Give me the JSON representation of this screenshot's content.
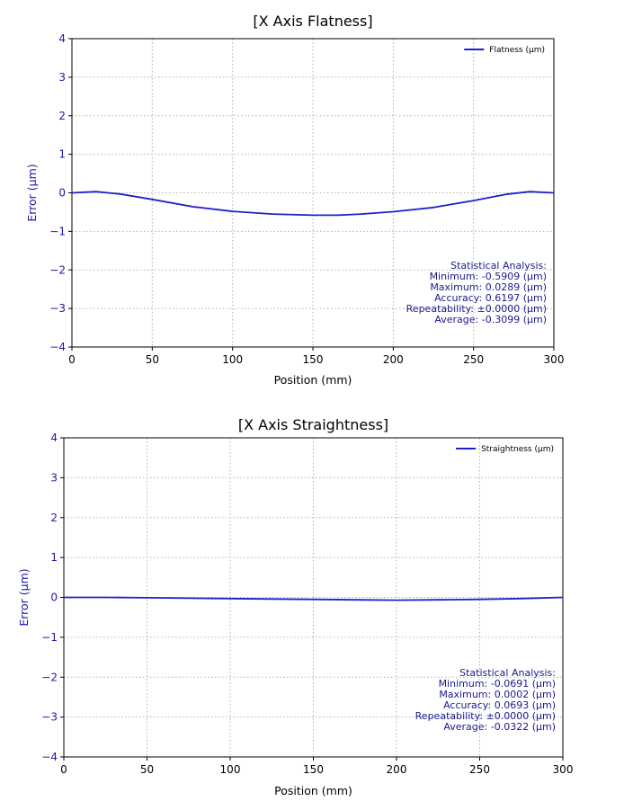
{
  "chart_data": [
    {
      "type": "line",
      "title": "[X Axis Flatness]",
      "xlabel": "Position (mm)",
      "ylabel": "Error (μm)",
      "xlim": [
        0,
        300
      ],
      "ylim": [
        -4,
        4
      ],
      "xticks": [
        0,
        50,
        100,
        150,
        200,
        250,
        300
      ],
      "yticks": [
        -4,
        -3,
        -2,
        -1,
        0,
        1,
        2,
        3,
        4
      ],
      "xtick_labels": [
        "0",
        "50",
        "100",
        "150",
        "200",
        "250",
        "300"
      ],
      "ytick_labels": [
        "−4",
        "−3",
        "−2",
        "−1",
        "0",
        "1",
        "2",
        "3",
        "4"
      ],
      "grid": true,
      "legend_position": "top-right",
      "series": [
        {
          "name": "Flatness (μm)",
          "color": "#1f1fcc",
          "x": [
            0,
            15,
            30,
            50,
            75,
            100,
            125,
            150,
            165,
            180,
            200,
            225,
            250,
            270,
            285,
            300
          ],
          "y": [
            0.0,
            0.03,
            -0.03,
            -0.17,
            -0.36,
            -0.48,
            -0.55,
            -0.58,
            -0.58,
            -0.55,
            -0.49,
            -0.38,
            -0.2,
            -0.04,
            0.03,
            0.0
          ]
        }
      ],
      "stats": {
        "heading": "Statistical Analysis:",
        "lines": [
          "Minimum: -0.5909 (μm)",
          "Maximum: 0.0289 (μm)",
          "Accuracy: 0.6197 (μm)",
          "Repeatability: ±0.0000 (μm)",
          "Average: -0.3099 (μm)"
        ]
      }
    },
    {
      "type": "line",
      "title": "[X Axis Straightness]",
      "xlabel": "Position (mm)",
      "ylabel": "Error (μm)",
      "xlim": [
        0,
        300
      ],
      "ylim": [
        -4,
        4
      ],
      "xticks": [
        0,
        50,
        100,
        150,
        200,
        250,
        300
      ],
      "yticks": [
        -4,
        -3,
        -2,
        -1,
        0,
        1,
        2,
        3,
        4
      ],
      "xtick_labels": [
        "0",
        "50",
        "100",
        "150",
        "200",
        "250",
        "300"
      ],
      "ytick_labels": [
        "−4",
        "−3",
        "−2",
        "−1",
        "0",
        "1",
        "2",
        "3",
        "4"
      ],
      "grid": true,
      "legend_position": "top-right",
      "series": [
        {
          "name": "Straightness (μm)",
          "color": "#1f1fcc",
          "x": [
            0,
            25,
            50,
            75,
            100,
            125,
            150,
            175,
            200,
            225,
            250,
            275,
            300
          ],
          "y": [
            0.0,
            0.0,
            -0.01,
            -0.02,
            -0.03,
            -0.04,
            -0.05,
            -0.06,
            -0.07,
            -0.06,
            -0.05,
            -0.03,
            0.0
          ]
        }
      ],
      "stats": {
        "heading": "Statistical Analysis:",
        "lines": [
          "Minimum: -0.0691 (μm)",
          "Maximum: 0.0002 (μm)",
          "Accuracy: 0.0693 (μm)",
          "Repeatability: ±0.0000 (μm)",
          "Average: -0.0322 (μm)"
        ]
      }
    }
  ]
}
